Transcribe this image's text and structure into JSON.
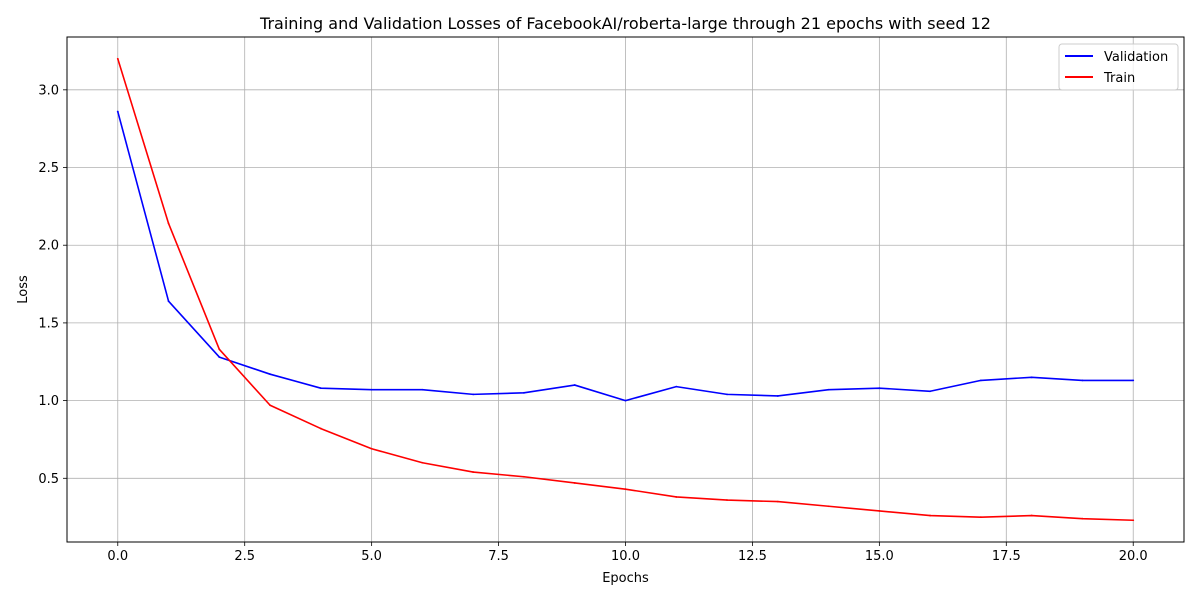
{
  "chart_data": {
    "type": "line",
    "title": "Training and Validation Losses of FacebookAI/roberta-large through 21 epochs with seed 12",
    "xlabel": "Epochs",
    "ylabel": "Loss",
    "xlim": [
      -1,
      21
    ],
    "ylim": [
      0.09,
      3.34
    ],
    "xticks": [
      0.0,
      2.5,
      5.0,
      7.5,
      10.0,
      12.5,
      15.0,
      17.5,
      20.0
    ],
    "xtick_labels": [
      "0.0",
      "2.5",
      "5.0",
      "7.5",
      "10.0",
      "12.5",
      "15.0",
      "17.5",
      "20.0"
    ],
    "yticks": [
      0.5,
      1.0,
      1.5,
      2.0,
      2.5,
      3.0
    ],
    "ytick_labels": [
      "0.5",
      "1.0",
      "1.5",
      "2.0",
      "2.5",
      "3.0"
    ],
    "grid": true,
    "legend_position": "top-right",
    "x": [
      0,
      1,
      2,
      3,
      4,
      5,
      6,
      7,
      8,
      9,
      10,
      11,
      12,
      13,
      14,
      15,
      16,
      17,
      18,
      19,
      20
    ],
    "series": [
      {
        "name": "Validation",
        "color": "#0000ff",
        "values": [
          2.86,
          1.64,
          1.28,
          1.17,
          1.08,
          1.07,
          1.07,
          1.04,
          1.05,
          1.1,
          1.0,
          1.09,
          1.04,
          1.03,
          1.07,
          1.08,
          1.06,
          1.13,
          1.15,
          1.13,
          1.13
        ]
      },
      {
        "name": "Train",
        "color": "#ff0000",
        "values": [
          3.2,
          2.14,
          1.33,
          0.97,
          0.82,
          0.69,
          0.6,
          0.54,
          0.51,
          0.47,
          0.43,
          0.38,
          0.36,
          0.35,
          0.32,
          0.29,
          0.26,
          0.25,
          0.26,
          0.24,
          0.23
        ]
      }
    ]
  }
}
